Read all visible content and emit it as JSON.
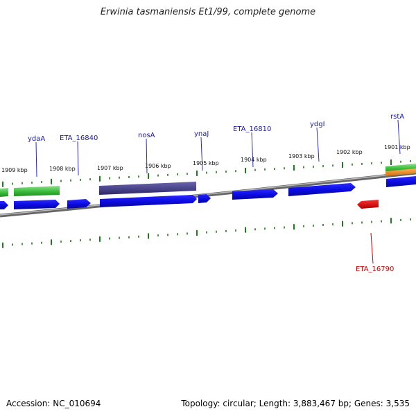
{
  "title": "Erwinia tasmaniensis Et1/99, complete genome",
  "footer": {
    "accession": "Accession: NC_010694",
    "summary": "Topology: circular; Length: 3,883,467 bp; Genes: 3,535"
  },
  "kbp_labels": [
    "1909 kbp",
    "1908 kbp",
    "1907 kbp",
    "1906 kbp",
    "1905 kbp",
    "1904 kbp",
    "1903 kbp",
    "1902 kbp",
    "1901 kbp"
  ],
  "gene_labels": [
    "ydaA",
    "ETA_16840",
    "nosA",
    "ynaJ",
    "ETA_16810",
    "ydgI",
    "rstA",
    "ETA_16790"
  ],
  "colors": {
    "forward_gene": "#0a0ae0",
    "reverse_gene": "#e00000",
    "forward_label": "#1a1aa8",
    "reverse_label": "#cc0000",
    "feature_green": "#3fbf3f",
    "feature_purple": "#48418a",
    "feature_orange": "#f09020",
    "tick": "#1d7a1d",
    "backbone": "#888888"
  }
}
